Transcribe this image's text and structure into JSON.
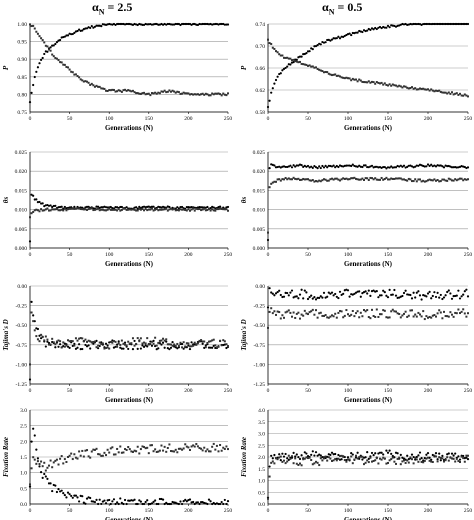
{
  "columns": [
    {
      "symbol": "α",
      "subscript": "N",
      "suffix": " = 2.5"
    },
    {
      "symbol": "α",
      "subscript": "N",
      "suffix": " = 0.5"
    }
  ],
  "chart_data": [
    {
      "type": "scatter",
      "title": "",
      "xlabel": "Generations (N)",
      "ylabel": "P",
      "xlim": [
        0,
        250
      ],
      "ylim": [
        0.75,
        1.0
      ],
      "yticks": [
        "0.75",
        "0.80",
        "0.85",
        "0.90",
        "0.95",
        "1.00"
      ],
      "xticks": [
        "0",
        "50",
        "100",
        "150",
        "200",
        "250"
      ],
      "grid": "horizontal",
      "series": [
        {
          "x": [
            0,
            5,
            10,
            20,
            30,
            40,
            50,
            60,
            75,
            100,
            125,
            150,
            175,
            200,
            225,
            250
          ],
          "values": [
            0.78,
            0.84,
            0.88,
            0.92,
            0.94,
            0.96,
            0.97,
            0.98,
            0.99,
            1.0,
            1.0,
            1.0,
            1.0,
            1.0,
            1.0,
            1.0
          ]
        },
        {
          "x": [
            0,
            5,
            10,
            20,
            30,
            40,
            50,
            60,
            75,
            100,
            125,
            150,
            175,
            200,
            225,
            250
          ],
          "values": [
            1.0,
            0.99,
            0.97,
            0.94,
            0.91,
            0.89,
            0.87,
            0.85,
            0.83,
            0.81,
            0.81,
            0.8,
            0.81,
            0.8,
            0.8,
            0.8
          ]
        }
      ]
    },
    {
      "type": "scatter",
      "title": "",
      "xlabel": "Generations (N)",
      "ylabel": "P",
      "xlim": [
        0,
        250
      ],
      "ylim": [
        0.58,
        0.74
      ],
      "yticks": [
        "0.58",
        "0.62",
        "0.66",
        "0.70",
        "0.74"
      ],
      "xticks": [
        "0",
        "50",
        "100",
        "150",
        "200",
        "250"
      ],
      "grid": "horizontal",
      "series": [
        {
          "x": [
            0,
            5,
            10,
            20,
            30,
            40,
            50,
            60,
            75,
            100,
            125,
            150,
            175,
            200,
            225,
            250
          ],
          "values": [
            0.59,
            0.62,
            0.64,
            0.66,
            0.67,
            0.68,
            0.69,
            0.7,
            0.71,
            0.72,
            0.73,
            0.735,
            0.74,
            0.74,
            0.745,
            0.74
          ]
        },
        {
          "x": [
            0,
            5,
            10,
            20,
            30,
            40,
            50,
            60,
            75,
            100,
            125,
            150,
            175,
            200,
            225,
            250
          ],
          "values": [
            0.71,
            0.7,
            0.69,
            0.68,
            0.675,
            0.67,
            0.665,
            0.66,
            0.65,
            0.64,
            0.635,
            0.63,
            0.625,
            0.62,
            0.615,
            0.61
          ]
        }
      ]
    },
    {
      "type": "scatter",
      "title": "",
      "xlabel": "Generations (N)",
      "ylabel": "θs",
      "xlim": [
        0,
        250
      ],
      "ylim": [
        0.0,
        0.025
      ],
      "yticks": [
        "0.000",
        "0.005",
        "0.010",
        "0.015",
        "0.020",
        "0.025"
      ],
      "xticks": [
        "0",
        "50",
        "100",
        "150",
        "200",
        "250"
      ],
      "grid": "horizontal",
      "series": [
        {
          "x": [
            0,
            2,
            5,
            10,
            20,
            40,
            60,
            100,
            150,
            200,
            250
          ],
          "values": [
            0.002,
            0.014,
            0.013,
            0.012,
            0.011,
            0.0105,
            0.0105,
            0.0105,
            0.0105,
            0.0105,
            0.0105
          ]
        },
        {
          "x": [
            0,
            2,
            5,
            10,
            20,
            40,
            60,
            100,
            150,
            200,
            250
          ],
          "values": [
            0.008,
            0.009,
            0.0095,
            0.0098,
            0.01,
            0.01,
            0.0102,
            0.01,
            0.01,
            0.01,
            0.01
          ]
        }
      ]
    },
    {
      "type": "scatter",
      "title": "",
      "xlabel": "Generations (N)",
      "ylabel": "θs",
      "xlim": [
        0,
        250
      ],
      "ylim": [
        0.0,
        0.025
      ],
      "yticks": [
        "0.000",
        "0.005",
        "0.010",
        "0.015",
        "0.020",
        "0.025"
      ],
      "xticks": [
        "0",
        "50",
        "100",
        "150",
        "200",
        "250"
      ],
      "grid": "horizontal",
      "series": [
        {
          "x": [
            0,
            2,
            5,
            10,
            20,
            40,
            60,
            100,
            150,
            200,
            250
          ],
          "values": [
            0.002,
            0.021,
            0.022,
            0.021,
            0.021,
            0.0215,
            0.021,
            0.0215,
            0.021,
            0.0215,
            0.021
          ]
        },
        {
          "x": [
            0,
            2,
            5,
            10,
            20,
            40,
            60,
            100,
            150,
            200,
            250
          ],
          "values": [
            0.004,
            0.016,
            0.017,
            0.0175,
            0.018,
            0.018,
            0.0175,
            0.018,
            0.018,
            0.0175,
            0.018
          ]
        }
      ]
    },
    {
      "type": "scatter",
      "title": "",
      "xlabel": "Generations (N)",
      "ylabel": "Tajima's D",
      "xlim": [
        0,
        250
      ],
      "ylim": [
        -1.25,
        0.0
      ],
      "yticks": [
        "-1.25",
        "-1.00",
        "-0.75",
        "-0.50",
        "-0.25",
        "0.00"
      ],
      "xticks": [
        "0",
        "50",
        "100",
        "150",
        "200",
        "250"
      ],
      "grid": "horizontal",
      "series": [
        {
          "x": [
            0,
            2,
            5,
            10,
            20,
            40,
            60,
            100,
            150,
            200,
            250
          ],
          "values": [
            -1.2,
            -0.2,
            -0.4,
            -0.6,
            -0.75,
            -0.75,
            -0.75,
            -0.75,
            -0.75,
            -0.75,
            -0.75
          ]
        },
        {
          "x": [
            0,
            2,
            5,
            10,
            20,
            40,
            60,
            100,
            150,
            200,
            250
          ],
          "values": [
            -1.0,
            -0.3,
            -0.5,
            -0.65,
            -0.7,
            -0.75,
            -0.7,
            -0.75,
            -0.7,
            -0.75,
            -0.72
          ]
        }
      ]
    },
    {
      "type": "scatter",
      "title": "",
      "xlabel": "Generations (N)",
      "ylabel": "Tajima's D",
      "xlim": [
        0,
        250
      ],
      "ylim": [
        -1.25,
        0.0
      ],
      "yticks": [
        "-1.25",
        "-1.00",
        "-0.75",
        "-0.50",
        "-0.25",
        "0.00"
      ],
      "xticks": [
        "0",
        "50",
        "100",
        "150",
        "200",
        "250"
      ],
      "grid": "horizontal",
      "series": [
        {
          "x": [
            0,
            2,
            5,
            10,
            20,
            40,
            60,
            100,
            150,
            200,
            250
          ],
          "values": [
            -0.3,
            -0.05,
            -0.1,
            -0.1,
            -0.12,
            -0.1,
            -0.12,
            -0.1,
            -0.1,
            -0.12,
            -0.1
          ]
        },
        {
          "x": [
            0,
            2,
            5,
            10,
            20,
            40,
            60,
            100,
            150,
            200,
            250
          ],
          "values": [
            -0.5,
            -0.3,
            -0.35,
            -0.38,
            -0.35,
            -0.38,
            -0.35,
            -0.36,
            -0.35,
            -0.37,
            -0.35
          ]
        }
      ]
    },
    {
      "type": "scatter",
      "title": "",
      "xlabel": "Generations (N)",
      "ylabel": "Fixation Rate",
      "xlim": [
        0,
        250
      ],
      "ylim": [
        0.0,
        3.0
      ],
      "yticks": [
        "0.0",
        "0.5",
        "1.0",
        "1.5",
        "2.0",
        "2.5",
        "3.0"
      ],
      "xticks": [
        "0",
        "50",
        "100",
        "150",
        "200",
        "250"
      ],
      "grid": "horizontal",
      "series": [
        {
          "x": [
            0,
            3,
            5,
            10,
            15,
            25,
            40,
            60,
            80,
            100,
            150,
            200,
            250
          ],
          "values": [
            0.5,
            2.6,
            2.3,
            1.5,
            1.0,
            0.6,
            0.3,
            0.15,
            0.08,
            0.05,
            0.03,
            0.02,
            0.02
          ]
        },
        {
          "x": [
            0,
            3,
            5,
            10,
            20,
            30,
            50,
            75,
            100,
            150,
            200,
            250
          ],
          "values": [
            0.6,
            1.5,
            1.4,
            1.3,
            1.2,
            1.3,
            1.5,
            1.6,
            1.7,
            1.75,
            1.8,
            1.8
          ]
        }
      ]
    },
    {
      "type": "scatter",
      "title": "",
      "xlabel": "Generations (N)",
      "ylabel": "Fixation Rate",
      "xlim": [
        0,
        250
      ],
      "ylim": [
        0.0,
        4.0
      ],
      "yticks": [
        "0.0",
        "0.5",
        "1.0",
        "1.5",
        "2.0",
        "2.5",
        "3.0",
        "3.5",
        "4.0"
      ],
      "xticks": [
        "0",
        "50",
        "100",
        "150",
        "200",
        "250"
      ],
      "grid": "horizontal",
      "series": [
        {
          "x": [
            0,
            3,
            5,
            10,
            20,
            50,
            100,
            150,
            200,
            250
          ],
          "values": [
            0.3,
            2.2,
            2.1,
            2.1,
            2.0,
            2.1,
            2.0,
            2.1,
            2.0,
            2.0
          ]
        },
        {
          "x": [
            0,
            3,
            5,
            10,
            20,
            50,
            100,
            150,
            200,
            250
          ],
          "values": [
            0.3,
            1.8,
            1.9,
            1.9,
            1.9,
            1.8,
            1.9,
            1.8,
            1.9,
            1.9
          ]
        }
      ]
    }
  ]
}
